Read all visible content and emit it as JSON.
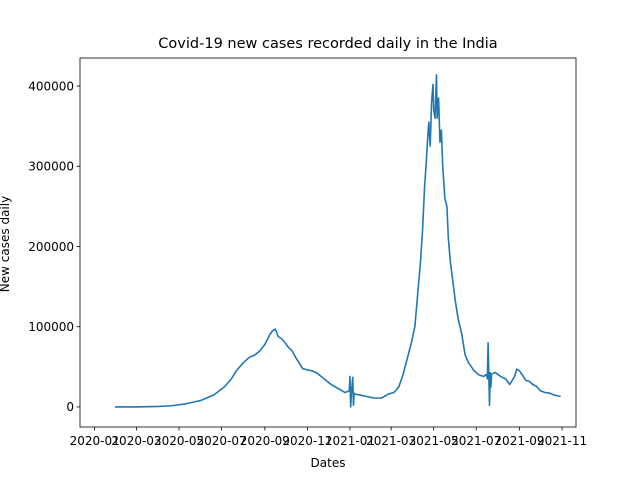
{
  "colors": {
    "line": "#1f77b4",
    "axis": "#000000",
    "background": "#ffffff"
  },
  "chart_data": {
    "type": "line",
    "title": "Covid-19 new cases recorded daily in the India",
    "xlabel": "Dates",
    "ylabel": "New cases daily",
    "grid": false,
    "xlim": [
      "2019-12-11",
      "2021-11-21"
    ],
    "ylim": [
      -25000,
      435000
    ],
    "x_ticks": [
      "2020-01-01",
      "2020-03-01",
      "2020-05-01",
      "2020-07-01",
      "2020-09-01",
      "2020-11-01",
      "2021-01-01",
      "2021-03-01",
      "2021-05-01",
      "2021-07-01",
      "2021-09-01",
      "2021-11-01"
    ],
    "x_tick_labels": [
      "2020-01",
      "2020-03",
      "2020-05",
      "2020-07",
      "2020-09",
      "2020-11",
      "2021-01",
      "2021-03",
      "2021-05",
      "2021-07",
      "2021-09",
      "2021-11"
    ],
    "y_ticks": [
      0,
      100000,
      200000,
      300000,
      400000
    ],
    "y_tick_labels": [
      "0",
      "100000",
      "200000",
      "300000",
      "400000"
    ],
    "series": [
      {
        "name": "New cases daily",
        "x": [
          "2020-01-30",
          "2020-03-01",
          "2020-04-01",
          "2020-04-20",
          "2020-05-10",
          "2020-06-01",
          "2020-06-20",
          "2020-07-05",
          "2020-07-15",
          "2020-07-22",
          "2020-08-01",
          "2020-08-10",
          "2020-08-18",
          "2020-08-25",
          "2020-09-01",
          "2020-09-08",
          "2020-09-12",
          "2020-09-16",
          "2020-09-20",
          "2020-09-25",
          "2020-09-30",
          "2020-10-05",
          "2020-10-10",
          "2020-10-15",
          "2020-10-20",
          "2020-10-25",
          "2020-11-01",
          "2020-11-08",
          "2020-11-15",
          "2020-11-25",
          "2020-12-05",
          "2020-12-15",
          "2020-12-25",
          "2020-12-31",
          "2021-01-01",
          "2021-01-02",
          "2021-01-03",
          "2021-01-05",
          "2021-01-06",
          "2021-01-07",
          "2021-01-08",
          "2021-01-15",
          "2021-01-25",
          "2021-02-05",
          "2021-02-15",
          "2021-02-25",
          "2021-03-05",
          "2021-03-12",
          "2021-03-18",
          "2021-03-24",
          "2021-03-30",
          "2021-04-04",
          "2021-04-08",
          "2021-04-12",
          "2021-04-15",
          "2021-04-18",
          "2021-04-20",
          "2021-04-22",
          "2021-04-24",
          "2021-04-26",
          "2021-04-28",
          "2021-04-30",
          "2021-05-01",
          "2021-05-03",
          "2021-05-05",
          "2021-05-06",
          "2021-05-08",
          "2021-05-10",
          "2021-05-12",
          "2021-05-14",
          "2021-05-17",
          "2021-05-20",
          "2021-05-22",
          "2021-05-25",
          "2021-05-28",
          "2021-06-01",
          "2021-06-05",
          "2021-06-10",
          "2021-06-15",
          "2021-06-20",
          "2021-06-28",
          "2021-07-05",
          "2021-07-12",
          "2021-07-14",
          "2021-07-16",
          "2021-07-17",
          "2021-07-18",
          "2021-07-20",
          "2021-07-21",
          "2021-07-22",
          "2021-07-23",
          "2021-07-28",
          "2021-08-05",
          "2021-08-12",
          "2021-08-18",
          "2021-08-25",
          "2021-08-28",
          "2021-09-01",
          "2021-09-05",
          "2021-09-10",
          "2021-09-15",
          "2021-09-20",
          "2021-09-25",
          "2021-10-01",
          "2021-10-08",
          "2021-10-15",
          "2021-10-20",
          "2021-10-25",
          "2021-10-30"
        ],
        "y": [
          0,
          0,
          600,
          1500,
          3800,
          8000,
          15000,
          25000,
          35000,
          45000,
          55000,
          62000,
          65000,
          70000,
          78000,
          90000,
          95000,
          97000,
          88000,
          85000,
          80000,
          74000,
          70000,
          62000,
          55000,
          48000,
          46000,
          45000,
          42000,
          35000,
          28000,
          23000,
          18000,
          20000,
          38000,
          0,
          16000,
          37000,
          2000,
          17000,
          16000,
          15000,
          13000,
          11000,
          11000,
          16000,
          18000,
          25000,
          40000,
          60000,
          80000,
          100000,
          140000,
          180000,
          220000,
          275000,
          300000,
          330000,
          355000,
          325000,
          380000,
          402000,
          370000,
          360000,
          414000,
          360000,
          385000,
          330000,
          345000,
          300000,
          260000,
          250000,
          210000,
          180000,
          160000,
          132000,
          110000,
          92000,
          65000,
          55000,
          45000,
          40000,
          38000,
          40000,
          40000,
          35000,
          80000,
          2000,
          43000,
          25000,
          41000,
          43000,
          38000,
          35000,
          28000,
          38000,
          47000,
          45000,
          40000,
          33000,
          32000,
          28000,
          26000,
          20000,
          18000,
          17000,
          15000,
          14000,
          13000
        ]
      }
    ]
  }
}
